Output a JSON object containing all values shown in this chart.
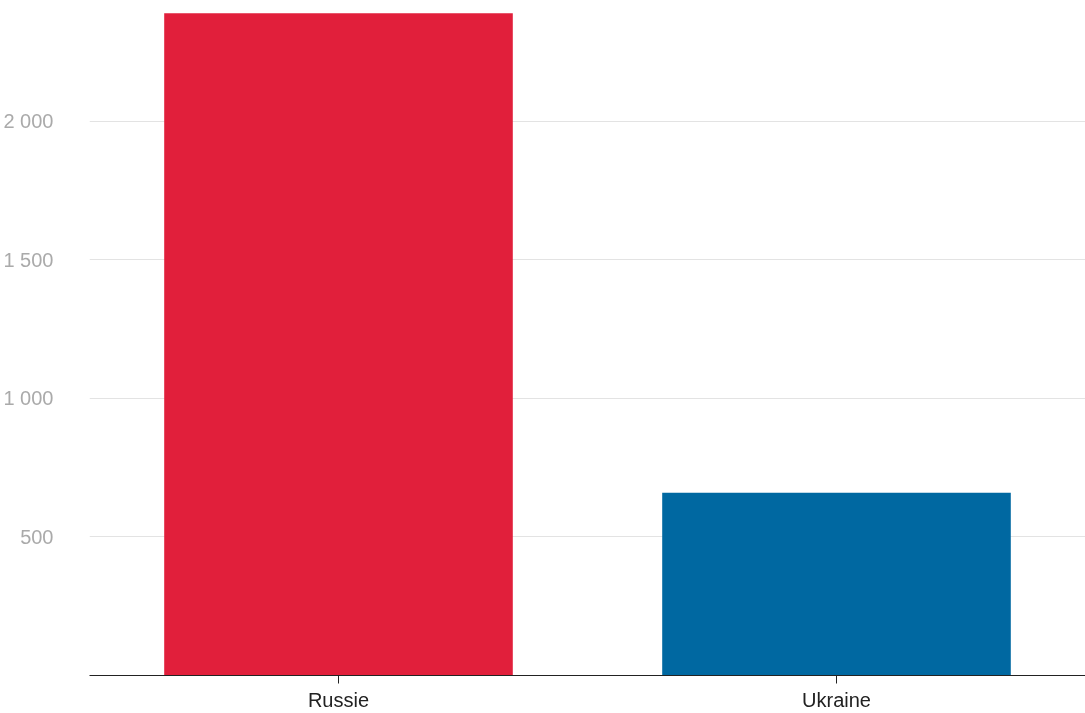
{
  "chart_data": {
    "type": "bar",
    "categories": [
      "Russie",
      "Ukraine"
    ],
    "values": [
      2390,
      660
    ],
    "colors": [
      "#e11f3b",
      "#0068a1"
    ],
    "ylim": [
      0,
      2400
    ],
    "yticks": [
      {
        "value": 500,
        "label": "500"
      },
      {
        "value": 1000,
        "label": "1 000"
      },
      {
        "value": 1500,
        "label": "1 500"
      },
      {
        "value": 2000,
        "label": "2 000"
      }
    ],
    "grid": "y"
  }
}
